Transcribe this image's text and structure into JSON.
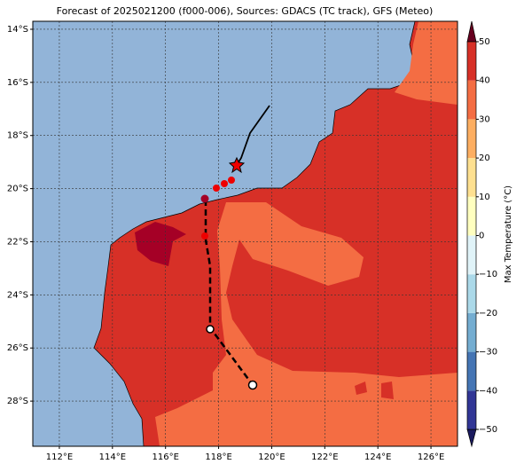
{
  "title": "Forecast of 2025021200 (f000-006), Sources: GDACS (TC track), GFS (Meteo)",
  "map": {
    "lonlim": [
      111,
      127
    ],
    "latlim": [
      -13.7,
      -29.7
    ],
    "lon_ticks": [
      {
        "value": 112,
        "label": "112°E"
      },
      {
        "value": 114,
        "label": "114°E"
      },
      {
        "value": 116,
        "label": "116°E"
      },
      {
        "value": 118,
        "label": "118°E"
      },
      {
        "value": 120,
        "label": "120°E"
      },
      {
        "value": 122,
        "label": "122°E"
      },
      {
        "value": 124,
        "label": "124°E"
      },
      {
        "value": 126,
        "label": "126°E"
      }
    ],
    "lat_ticks": [
      {
        "value": -14,
        "label": "14°S"
      },
      {
        "value": -16,
        "label": "16°S"
      },
      {
        "value": -18,
        "label": "18°S"
      },
      {
        "value": -20,
        "label": "20°S"
      },
      {
        "value": -22,
        "label": "22°S"
      },
      {
        "value": -24,
        "label": "24°S"
      },
      {
        "value": -26,
        "label": "26°S"
      },
      {
        "value": -28,
        "label": "28°S"
      }
    ]
  },
  "colorbar": {
    "label": "Max Temperature (°C)",
    "clim": [
      -50,
      50
    ],
    "ticks": [
      {
        "value": -50,
        "label": "−50"
      },
      {
        "value": -40,
        "label": "−40"
      },
      {
        "value": -30,
        "label": "−30"
      },
      {
        "value": -20,
        "label": "−20"
      },
      {
        "value": -10,
        "label": "−10"
      },
      0,
      10,
      20,
      30,
      40,
      50
    ],
    "colors": [
      "#313695",
      "#4575b4",
      "#74add1",
      "#abd9e9",
      "#e0f3f8",
      "#ffffbf",
      "#fee090",
      "#fdae61",
      "#f46d43",
      "#d73027"
    ]
  }
}
